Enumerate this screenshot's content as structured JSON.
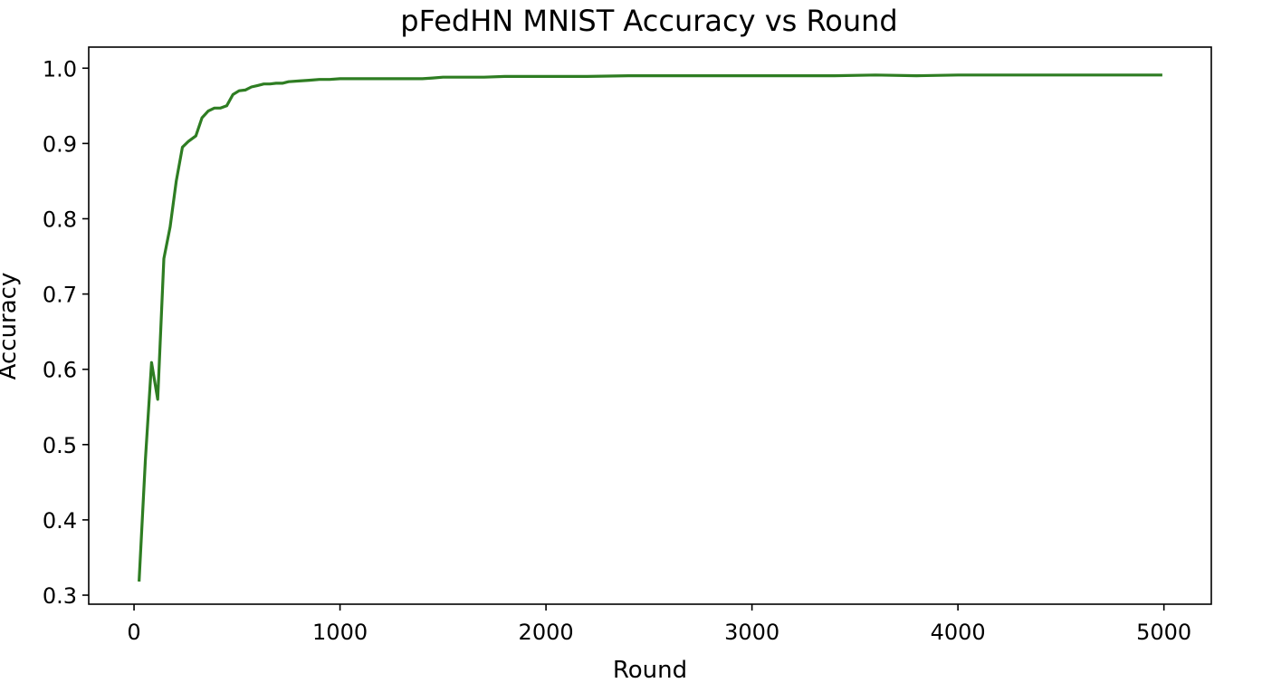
{
  "chart_data": {
    "type": "line",
    "title": "pFedHN MNIST Accuracy vs Round",
    "xlabel": "Round",
    "ylabel": "Accuracy",
    "xlim": [
      -220,
      5230
    ],
    "ylim": [
      0.288,
      1.028
    ],
    "xticks": [
      0,
      1000,
      2000,
      3000,
      4000,
      5000
    ],
    "yticks": [
      0.3,
      0.4,
      0.5,
      0.6,
      0.7,
      0.8,
      0.9,
      1.0
    ],
    "xtick_labels": [
      "0",
      "1000",
      "2000",
      "3000",
      "4000",
      "5000"
    ],
    "ytick_labels": [
      "0.3",
      "0.4",
      "0.5",
      "0.6",
      "0.7",
      "0.8",
      "0.9",
      "1.0"
    ],
    "grid": false,
    "legend": "none",
    "series": [
      {
        "color": "#2e7d22",
        "x": [
          25,
          55,
          85,
          115,
          145,
          175,
          205,
          235,
          265,
          300,
          330,
          360,
          390,
          420,
          450,
          480,
          510,
          540,
          570,
          600,
          630,
          660,
          690,
          720,
          750,
          800,
          850,
          900,
          950,
          1000,
          1050,
          1100,
          1150,
          1200,
          1250,
          1300,
          1350,
          1400,
          1450,
          1500,
          1600,
          1700,
          1800,
          1900,
          2000,
          2200,
          2400,
          2600,
          2800,
          3000,
          3200,
          3400,
          3600,
          3800,
          4000,
          4200,
          4400,
          4600,
          4800,
          4985
        ],
        "y": [
          0.32,
          0.48,
          0.609,
          0.56,
          0.747,
          0.789,
          0.85,
          0.895,
          0.903,
          0.91,
          0.934,
          0.943,
          0.947,
          0.947,
          0.95,
          0.965,
          0.97,
          0.971,
          0.975,
          0.977,
          0.979,
          0.979,
          0.98,
          0.98,
          0.982,
          0.983,
          0.984,
          0.985,
          0.985,
          0.986,
          0.986,
          0.986,
          0.986,
          0.986,
          0.986,
          0.986,
          0.986,
          0.986,
          0.987,
          0.988,
          0.988,
          0.988,
          0.989,
          0.989,
          0.989,
          0.989,
          0.99,
          0.99,
          0.99,
          0.99,
          0.99,
          0.99,
          0.991,
          0.99,
          0.991,
          0.991,
          0.991,
          0.991,
          0.991,
          0.991
        ]
      }
    ]
  }
}
